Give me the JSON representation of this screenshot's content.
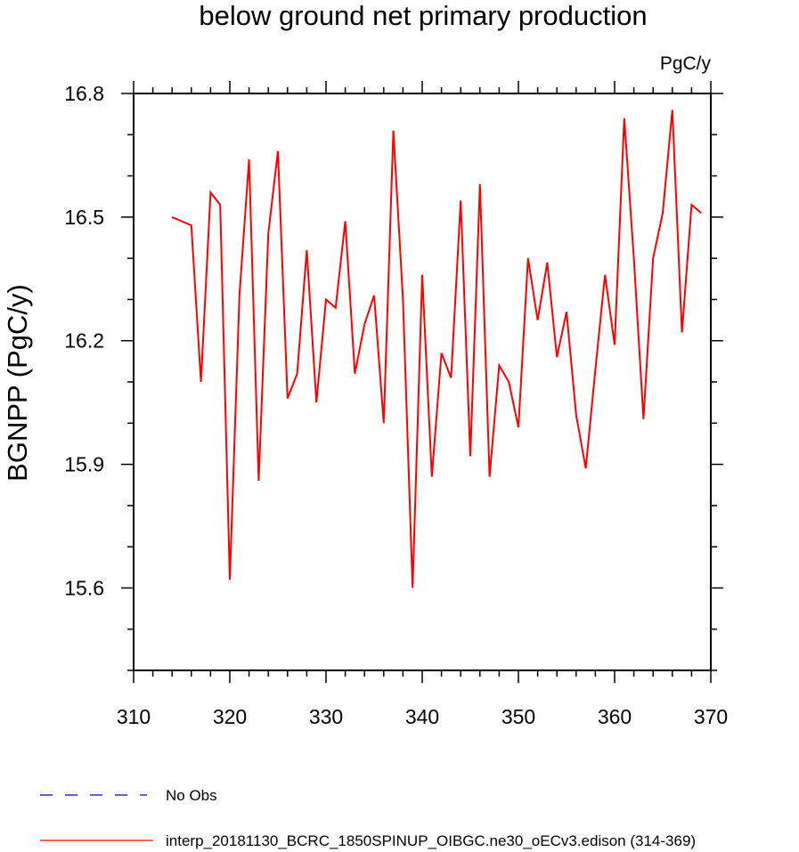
{
  "chart_data": {
    "type": "line",
    "title": "below ground net primary production",
    "units_label": "PgC/y",
    "ylabel": "BGNPP  (PgC/y)",
    "xlabel": "",
    "xlim": [
      310,
      370
    ],
    "ylim": [
      15.4,
      16.8
    ],
    "x_ticks": [
      310,
      320,
      330,
      340,
      350,
      360,
      370
    ],
    "y_ticks": [
      15.6,
      15.9,
      16.2,
      16.5,
      16.8
    ],
    "y_tick_labels": [
      "15.6",
      "15.9",
      "16.2",
      "16.5",
      "16.8"
    ],
    "x_tick_labels": [
      "310",
      "320",
      "330",
      "340",
      "350",
      "360",
      "370"
    ],
    "grid": false,
    "legend_position": "bottom",
    "legend": [
      {
        "label": "No Obs",
        "color": "#0000cc",
        "style": "dashed"
      },
      {
        "label": "interp_20181130_BCRC_1850SPINUP_OIBGC.ne30_oECv3.edison (314-369)",
        "color": "#ff0000",
        "style": "solid"
      }
    ],
    "series": [
      {
        "name": "interp_20181130_BCRC_1850SPINUP_OIBGC.ne30_oECv3.edison (314-369)",
        "color": "#ff0000",
        "x": [
          314,
          315,
          316,
          317,
          318,
          319,
          320,
          321,
          322,
          323,
          324,
          325,
          326,
          327,
          328,
          329,
          330,
          331,
          332,
          333,
          334,
          335,
          336,
          337,
          338,
          339,
          340,
          341,
          342,
          343,
          344,
          345,
          346,
          347,
          348,
          349,
          350,
          351,
          352,
          353,
          354,
          355,
          356,
          357,
          358,
          359,
          360,
          361,
          362,
          363,
          364,
          365,
          366,
          367,
          368,
          369
        ],
        "values": [
          16.5,
          16.49,
          16.48,
          16.1,
          16.56,
          16.53,
          15.62,
          16.31,
          16.64,
          15.86,
          16.46,
          16.66,
          16.06,
          16.12,
          16.42,
          16.05,
          16.3,
          16.28,
          16.49,
          16.12,
          16.24,
          16.31,
          16.0,
          16.71,
          16.3,
          15.6,
          16.36,
          15.87,
          16.17,
          16.11,
          16.54,
          15.92,
          16.58,
          15.87,
          16.14,
          16.1,
          15.99,
          16.4,
          16.25,
          16.39,
          16.16,
          16.27,
          16.02,
          15.89,
          16.13,
          16.36,
          16.19,
          16.74,
          16.4,
          16.01,
          16.4,
          16.51,
          16.76,
          16.22,
          16.53,
          16.51
        ]
      }
    ]
  }
}
